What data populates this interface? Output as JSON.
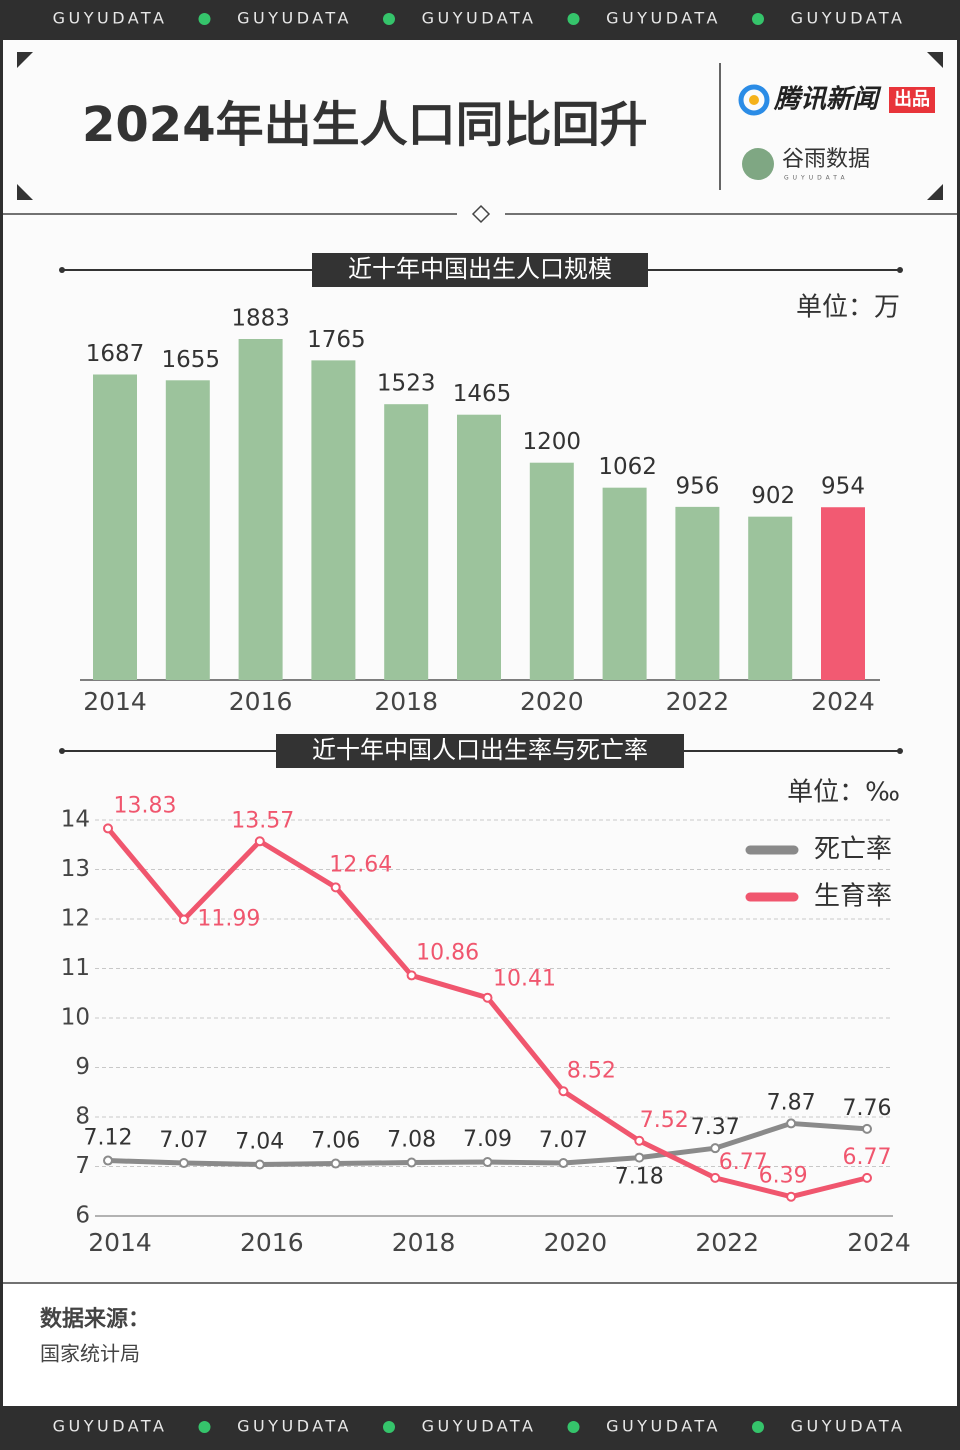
{
  "top_banner": [
    "GUYUDATA",
    "GUYUDATA",
    "GUYUDATA",
    "GUYUDATA",
    "GUYUDATA"
  ],
  "header": {
    "title": "2024年出生人口同比回升",
    "brand_1": "腾讯新闻",
    "brand_1_tag": "出品",
    "brand_2": "谷雨数据",
    "brand_2_sub": "GUYUDATA"
  },
  "chart_data": [
    {
      "type": "bar",
      "title": "近十年中国出生人口规模",
      "unit": "单位：万",
      "categories": [
        "2014",
        null,
        "2016",
        null,
        "2018",
        null,
        "2020",
        null,
        "2022",
        null,
        "2024"
      ],
      "values": [
        1687,
        1655,
        1883,
        1765,
        1523,
        1465,
        1200,
        1062,
        956,
        902,
        954
      ],
      "colors": [
        "#9cc39c",
        "#9cc39c",
        "#9cc39c",
        "#9cc39c",
        "#9cc39c",
        "#9cc39c",
        "#9cc39c",
        "#9cc39c",
        "#9cc39c",
        "#9cc39c",
        "#f25a72"
      ]
    },
    {
      "type": "line",
      "title": "近十年中国人口出生率与死亡率",
      "unit": "单位：‰",
      "categories": [
        "2014",
        null,
        "2016",
        null,
        "2018",
        null,
        "2020",
        null,
        "2022",
        null,
        "2024"
      ],
      "ylim": [
        6,
        14
      ],
      "yticks": [
        6,
        7,
        8,
        9,
        10,
        11,
        12,
        13,
        14
      ],
      "grid": true,
      "legend": "right",
      "series": [
        {
          "name": "死亡率",
          "color": "#8a8a8a",
          "values": [
            7.12,
            7.07,
            7.04,
            7.06,
            7.08,
            7.09,
            7.07,
            7.18,
            7.37,
            7.87,
            7.76
          ]
        },
        {
          "name": "生育率",
          "color": "#f0566e",
          "values": [
            13.83,
            11.99,
            13.57,
            12.64,
            10.86,
            10.41,
            8.52,
            7.52,
            6.77,
            6.39,
            6.77
          ]
        }
      ]
    }
  ],
  "source": {
    "label": "数据来源：",
    "text": "国家统计局"
  },
  "bottom_banner": [
    "GUYUDATA",
    "GUYUDATA",
    "GUYUDATA",
    "GUYUDATA",
    "GUYUDATA"
  ]
}
